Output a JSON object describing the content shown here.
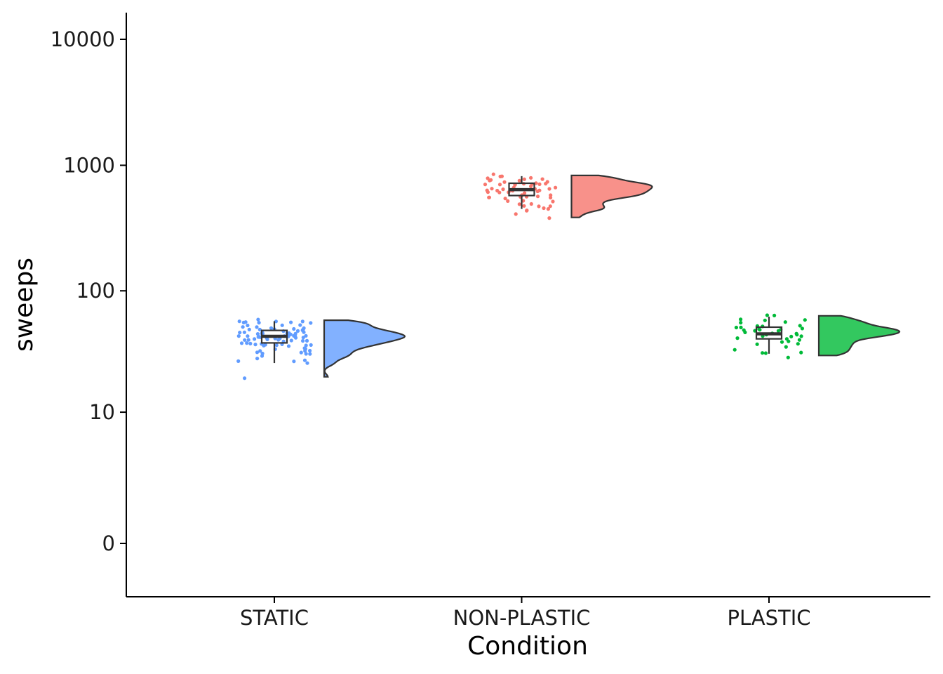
{
  "chart_data": {
    "type": "raincloud",
    "xlabel": "Condition",
    "ylabel": "sweeps",
    "y_scale": "log10(y+1)",
    "y_ticks": [
      0,
      10,
      100,
      1000,
      10000
    ],
    "y_tick_labels": [
      "0",
      "10",
      "100",
      "1000",
      "10000"
    ],
    "categories": [
      "STATIC",
      "NON-PLASTIC",
      "PLASTIC"
    ],
    "grid": false,
    "legend": "none",
    "series": [
      {
        "name": "STATIC",
        "color": "#619CFF",
        "fill": "#82B1FF",
        "box": {
          "min": 26,
          "q1": 38,
          "median": 43,
          "q3": 48,
          "max": 57
        },
        "range": [
          20,
          58
        ],
        "density_peak": 45,
        "points": [
          20,
          25,
          26,
          27,
          28,
          29,
          29,
          30,
          30,
          31,
          31,
          32,
          32,
          33,
          33,
          34,
          34,
          35,
          35,
          35,
          36,
          36,
          36,
          37,
          37,
          37,
          38,
          38,
          38,
          38,
          39,
          39,
          39,
          39,
          40,
          40,
          40,
          40,
          41,
          41,
          41,
          41,
          42,
          42,
          42,
          42,
          42,
          43,
          43,
          43,
          43,
          43,
          44,
          44,
          44,
          44,
          45,
          45,
          45,
          45,
          46,
          46,
          46,
          46,
          47,
          47,
          47,
          48,
          48,
          48,
          49,
          49,
          49,
          50,
          50,
          51,
          51,
          52,
          52,
          53,
          53,
          54,
          54,
          55,
          55,
          56,
          56,
          57,
          57,
          58
        ]
      },
      {
        "name": "NON-PLASTIC",
        "color": "#F8766D",
        "fill": "#F8918A",
        "box": {
          "min": 450,
          "q1": 575,
          "median": 640,
          "q3": 720,
          "max": 820
        },
        "range": [
          385,
          830
        ],
        "density_peak": 670,
        "points": [
          385,
          410,
          430,
          440,
          450,
          455,
          460,
          470,
          480,
          490,
          500,
          510,
          520,
          530,
          540,
          550,
          555,
          560,
          565,
          570,
          575,
          580,
          585,
          590,
          595,
          600,
          605,
          610,
          615,
          620,
          625,
          630,
          635,
          640,
          645,
          650,
          655,
          660,
          665,
          670,
          675,
          680,
          685,
          690,
          695,
          700,
          705,
          710,
          715,
          720,
          725,
          730,
          740,
          750,
          760,
          770,
          780,
          790,
          800,
          810,
          820,
          830
        ]
      },
      {
        "name": "PLASTIC",
        "color": "#00BA38",
        "fill": "#33C85F",
        "box": {
          "min": 31,
          "q1": 41,
          "median": 45,
          "q3": 51,
          "max": 62
        },
        "range": [
          30,
          63
        ],
        "density_peak": 48,
        "points": [
          30,
          31,
          32,
          33,
          34,
          35,
          36,
          37,
          38,
          39,
          40,
          41,
          42,
          43,
          43,
          44,
          44,
          45,
          45,
          46,
          46,
          47,
          47,
          48,
          48,
          49,
          49,
          50,
          50,
          51,
          52,
          53,
          54,
          55,
          56,
          57,
          58,
          60,
          62,
          63
        ]
      }
    ]
  }
}
